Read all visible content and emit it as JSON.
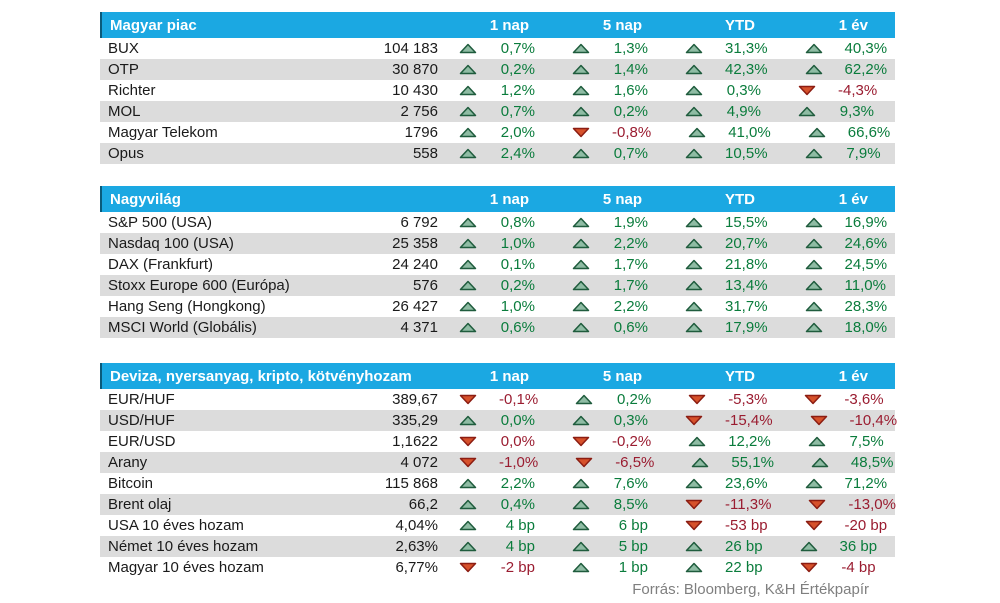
{
  "footer": {
    "source": "Forrás: Bloomberg, K&H Értékpapír"
  },
  "colors": {
    "header_bg": "#1BA8E2",
    "header_edge": "#0A5A7A",
    "row_alt": "#DCDCDC",
    "up_fill": "#8FBCA4",
    "up_stroke": "#1F5C3D",
    "up_text": "#0A7C3C",
    "down_fill": "#D6512B",
    "down_stroke": "#8C1D12",
    "down_text": "#9A1C30"
  },
  "chart_data": [
    {
      "type": "table",
      "title": "Magyar piac",
      "columns": [
        "1 nap",
        "5 nap",
        "YTD",
        "1 év"
      ],
      "rows": [
        {
          "name": "BUX",
          "value": "104 183",
          "changes": [
            {
              "dir": "up",
              "text": "0,7%"
            },
            {
              "dir": "up",
              "text": "1,3%"
            },
            {
              "dir": "up",
              "text": "31,3%"
            },
            {
              "dir": "up",
              "text": "40,3%"
            }
          ]
        },
        {
          "name": "OTP",
          "value": "30 870",
          "changes": [
            {
              "dir": "up",
              "text": "0,2%"
            },
            {
              "dir": "up",
              "text": "1,4%"
            },
            {
              "dir": "up",
              "text": "42,3%"
            },
            {
              "dir": "up",
              "text": "62,2%"
            }
          ]
        },
        {
          "name": "Richter",
          "value": "10 430",
          "changes": [
            {
              "dir": "up",
              "text": "1,2%"
            },
            {
              "dir": "up",
              "text": "1,6%"
            },
            {
              "dir": "up",
              "text": "0,3%"
            },
            {
              "dir": "down",
              "text": "-4,3%"
            }
          ]
        },
        {
          "name": "MOL",
          "value": "2 756",
          "changes": [
            {
              "dir": "up",
              "text": "0,7%"
            },
            {
              "dir": "up",
              "text": "0,2%"
            },
            {
              "dir": "up",
              "text": "4,9%"
            },
            {
              "dir": "up",
              "text": "9,3%"
            }
          ]
        },
        {
          "name": "Magyar Telekom",
          "value": "1796",
          "changes": [
            {
              "dir": "up",
              "text": "2,0%"
            },
            {
              "dir": "down",
              "text": "-0,8%"
            },
            {
              "dir": "up",
              "text": "41,0%"
            },
            {
              "dir": "up",
              "text": "66,6%"
            }
          ]
        },
        {
          "name": "Opus",
          "value": "558",
          "changes": [
            {
              "dir": "up",
              "text": "2,4%"
            },
            {
              "dir": "up",
              "text": "0,7%"
            },
            {
              "dir": "up",
              "text": "10,5%"
            },
            {
              "dir": "up",
              "text": "7,9%"
            }
          ]
        }
      ]
    },
    {
      "type": "table",
      "title": "Nagyvilág",
      "columns": [
        "1 nap",
        "5 nap",
        "YTD",
        "1 év"
      ],
      "rows": [
        {
          "name": "S&P 500 (USA)",
          "value": "6 792",
          "changes": [
            {
              "dir": "up",
              "text": "0,8%"
            },
            {
              "dir": "up",
              "text": "1,9%"
            },
            {
              "dir": "up",
              "text": "15,5%"
            },
            {
              "dir": "up",
              "text": "16,9%"
            }
          ]
        },
        {
          "name": "Nasdaq 100 (USA)",
          "value": "25 358",
          "changes": [
            {
              "dir": "up",
              "text": "1,0%"
            },
            {
              "dir": "up",
              "text": "2,2%"
            },
            {
              "dir": "up",
              "text": "20,7%"
            },
            {
              "dir": "up",
              "text": "24,6%"
            }
          ]
        },
        {
          "name": "DAX (Frankfurt)",
          "value": "24 240",
          "changes": [
            {
              "dir": "up",
              "text": "0,1%"
            },
            {
              "dir": "up",
              "text": "1,7%"
            },
            {
              "dir": "up",
              "text": "21,8%"
            },
            {
              "dir": "up",
              "text": "24,5%"
            }
          ]
        },
        {
          "name": "Stoxx Europe 600 (Európa)",
          "value": "576",
          "changes": [
            {
              "dir": "up",
              "text": "0,2%"
            },
            {
              "dir": "up",
              "text": "1,7%"
            },
            {
              "dir": "up",
              "text": "13,4%"
            },
            {
              "dir": "up",
              "text": "11,0%"
            }
          ]
        },
        {
          "name": "Hang Seng (Hongkong)",
          "value": "26 427",
          "changes": [
            {
              "dir": "up",
              "text": "1,0%"
            },
            {
              "dir": "up",
              "text": "2,2%"
            },
            {
              "dir": "up",
              "text": "31,7%"
            },
            {
              "dir": "up",
              "text": "28,3%"
            }
          ]
        },
        {
          "name": "MSCI World (Globális)",
          "value": "4 371",
          "changes": [
            {
              "dir": "up",
              "text": "0,6%"
            },
            {
              "dir": "up",
              "text": "0,6%"
            },
            {
              "dir": "up",
              "text": "17,9%"
            },
            {
              "dir": "up",
              "text": "18,0%"
            }
          ]
        }
      ]
    },
    {
      "type": "table",
      "title": "Deviza, nyersanyag, kripto, kötvényhozam",
      "columns": [
        "1 nap",
        "5 nap",
        "YTD",
        "1 év"
      ],
      "rows": [
        {
          "name": "EUR/HUF",
          "value": "389,67",
          "changes": [
            {
              "dir": "down",
              "text": "-0,1%"
            },
            {
              "dir": "up",
              "text": "0,2%"
            },
            {
              "dir": "down",
              "text": "-5,3%"
            },
            {
              "dir": "down",
              "text": "-3,6%"
            }
          ]
        },
        {
          "name": "USD/HUF",
          "value": "335,29",
          "changes": [
            {
              "dir": "up",
              "text": "0,0%"
            },
            {
              "dir": "up",
              "text": "0,3%"
            },
            {
              "dir": "down",
              "text": "-15,4%"
            },
            {
              "dir": "down",
              "text": "-10,4%"
            }
          ]
        },
        {
          "name": "EUR/USD",
          "value": "1,1622",
          "changes": [
            {
              "dir": "down",
              "text": "0,0%"
            },
            {
              "dir": "down",
              "text": "-0,2%"
            },
            {
              "dir": "up",
              "text": "12,2%"
            },
            {
              "dir": "up",
              "text": "7,5%"
            }
          ]
        },
        {
          "name": "Arany",
          "value": "4 072",
          "changes": [
            {
              "dir": "down",
              "text": "-1,0%"
            },
            {
              "dir": "down",
              "text": "-6,5%"
            },
            {
              "dir": "up",
              "text": "55,1%"
            },
            {
              "dir": "up",
              "text": "48,5%"
            }
          ]
        },
        {
          "name": "Bitcoin",
          "value": "115 868",
          "changes": [
            {
              "dir": "up",
              "text": "2,2%"
            },
            {
              "dir": "up",
              "text": "7,6%"
            },
            {
              "dir": "up",
              "text": "23,6%"
            },
            {
              "dir": "up",
              "text": "71,2%"
            }
          ]
        },
        {
          "name": "Brent olaj",
          "value": "66,2",
          "changes": [
            {
              "dir": "up",
              "text": "0,4%"
            },
            {
              "dir": "up",
              "text": "8,5%"
            },
            {
              "dir": "down",
              "text": "-11,3%"
            },
            {
              "dir": "down",
              "text": "-13,0%"
            }
          ]
        },
        {
          "name": "USA 10 éves hozam",
          "value": "4,04%",
          "changes": [
            {
              "dir": "up",
              "text": "4 bp"
            },
            {
              "dir": "up",
              "text": "6 bp"
            },
            {
              "dir": "down",
              "text": "-53 bp"
            },
            {
              "dir": "down",
              "text": "-20 bp"
            }
          ]
        },
        {
          "name": "Német 10 éves hozam",
          "value": "2,63%",
          "changes": [
            {
              "dir": "up",
              "text": "4 bp"
            },
            {
              "dir": "up",
              "text": "5 bp"
            },
            {
              "dir": "up",
              "text": "26 bp"
            },
            {
              "dir": "up",
              "text": "36 bp"
            }
          ]
        },
        {
          "name": "Magyar 10 éves hozam",
          "value": "6,77%",
          "changes": [
            {
              "dir": "down",
              "text": "-2 bp"
            },
            {
              "dir": "up",
              "text": "1 bp"
            },
            {
              "dir": "up",
              "text": "22 bp"
            },
            {
              "dir": "down",
              "text": "-4 bp"
            }
          ]
        }
      ]
    }
  ]
}
